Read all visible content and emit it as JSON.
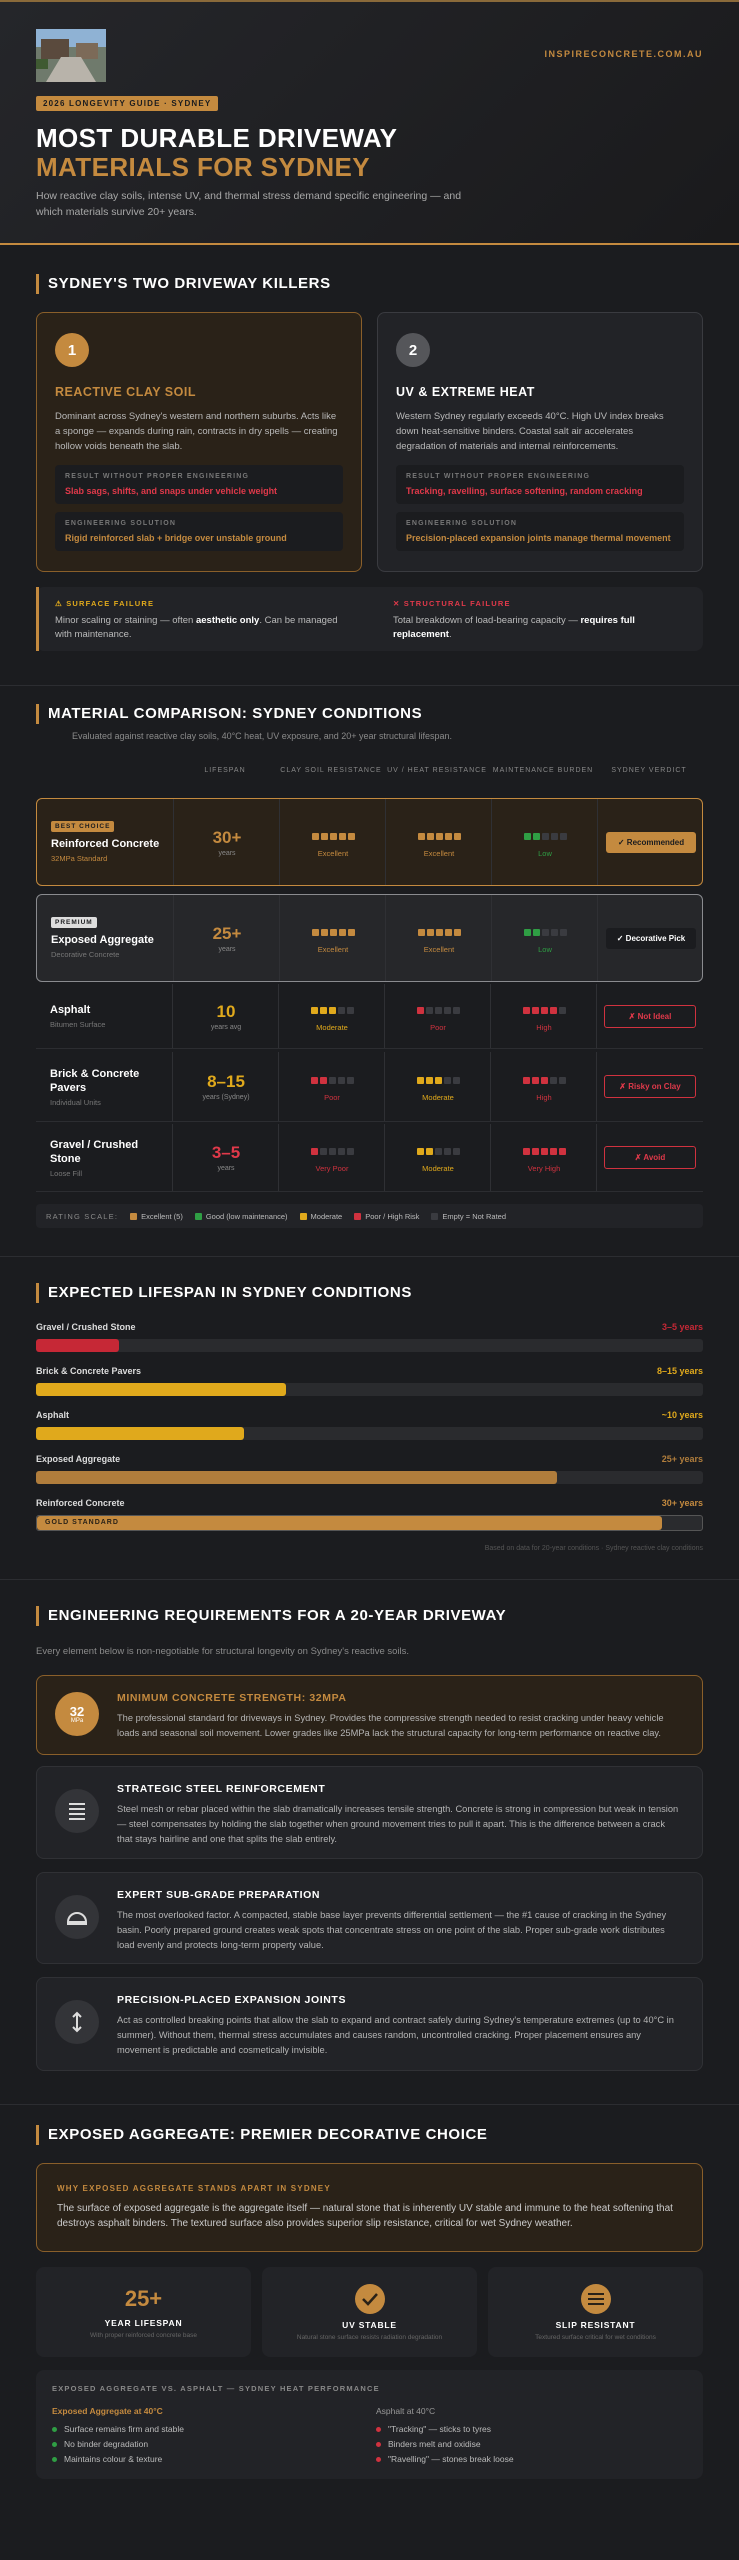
{
  "header": {
    "brand": "INSPIRECONCRETE.COM.AU",
    "tag": "2026 LONGEVITY GUIDE · SYDNEY",
    "title_line1": "MOST DURABLE DRIVEWAY",
    "title_line2": "MATERIALS FOR SYDNEY",
    "subtitle": "How reactive clay soils, intense UV, and thermal stress demand specific engineering — and which materials survive 20+ years."
  },
  "killers": {
    "title": "SYDNEY'S TWO DRIVEWAY KILLERS",
    "cards": [
      {
        "number": 1,
        "title": "REACTIVE CLAY SOIL",
        "body": "Dominant across Sydney's western and northern suburbs. Acts like a sponge — expands during rain, contracts in dry spells — creating hollow voids beneath the slab.",
        "result_label": "RESULT WITHOUT PROPER ENGINEERING",
        "result": "Slab sags, shifts, and snaps under vehicle weight",
        "solution_label": "ENGINEERING SOLUTION",
        "solution": "Rigid reinforced slab + bridge over unstable ground"
      },
      {
        "number": 2,
        "title": "UV & EXTREME HEAT",
        "body": "Western Sydney regularly exceeds 40°C. High UV index breaks down heat-sensitive binders. Coastal salt air accelerates degradation of materials and internal reinforcements.",
        "result_label": "RESULT WITHOUT PROPER ENGINEERING",
        "result": "Tracking, ravelling, surface softening, random cracking",
        "solution_label": "ENGINEERING SOLUTION",
        "solution": "Precision-placed expansion joints manage thermal movement"
      }
    ],
    "failures": [
      {
        "title": "⚠ SURFACE FAILURE",
        "text_before": "Minor scaling or staining — often ",
        "emph": "aesthetic only",
        "text_after": ". Can be managed with maintenance."
      },
      {
        "title": "✕ STRUCTURAL FAILURE",
        "text_before": "Total breakdown of load-bearing capacity — ",
        "emph": "requires full replacement",
        "text_after": "."
      }
    ]
  },
  "comparison": {
    "title": "MATERIAL COMPARISON: SYDNEY CONDITIONS",
    "subtitle": "Evaluated against reactive clay soils, 40°C heat, UV exposure, and 20+ year structural lifespan.",
    "columns": [
      "LIFESPAN",
      "CLAY SOIL RESISTANCE",
      "UV / HEAT RESISTANCE",
      "MAINTENANCE BURDEN",
      "SYDNEY VERDICT"
    ],
    "rows": [
      {
        "badge": "BEST CHOICE",
        "name": "Reinforced Concrete",
        "note": "32MPa Standard",
        "lifespan": "30+",
        "lifespan_unit": "years",
        "clay": {
          "label": "Excellent",
          "score": 5,
          "color": "#c48a3f"
        },
        "uv": {
          "label": "Excellent",
          "score": 5,
          "color": "#c48a3f"
        },
        "maintenance": {
          "label": "Low",
          "score": 2,
          "color": "#2f9e44"
        },
        "verdict": "✓ Recommended"
      },
      {
        "badge": "PREMIUM",
        "name": "Exposed Aggregate",
        "note": "Decorative Concrete",
        "lifespan": "25+",
        "lifespan_unit": "years",
        "clay": {
          "label": "Excellent",
          "score": 5,
          "color": "#c48a3f"
        },
        "uv": {
          "label": "Excellent",
          "score": 5,
          "color": "#c48a3f"
        },
        "maintenance": {
          "label": "Low",
          "score": 2,
          "color": "#2f9e44"
        },
        "verdict": "✓ Decorative Pick"
      },
      {
        "name": "Asphalt",
        "note": "Bitumen Surface",
        "lifespan": "10",
        "lifespan_unit": "years avg",
        "clay": {
          "label": "Moderate",
          "score": 3,
          "color": "#e0a91c"
        },
        "uv": {
          "label": "Poor",
          "score": 1,
          "color": "#d0323f"
        },
        "maintenance": {
          "label": "High",
          "score": 4,
          "color": "#d0323f"
        },
        "verdict": "✗ Not Ideal"
      },
      {
        "name": "Brick & Concrete Pavers",
        "note": "Individual Units",
        "lifespan": "8–15",
        "lifespan_unit": "years (Sydney)",
        "clay": {
          "label": "Poor",
          "score": 2,
          "color": "#d0323f"
        },
        "uv": {
          "label": "Moderate",
          "score": 3,
          "color": "#e0a91c"
        },
        "maintenance": {
          "label": "High",
          "score": 3,
          "color": "#d0323f"
        },
        "verdict": "✗ Risky on Clay"
      },
      {
        "name": "Gravel / Crushed Stone",
        "note": "Loose Fill",
        "lifespan": "3–5",
        "lifespan_unit": "years",
        "clay": {
          "label": "Very Poor",
          "score": 1,
          "color": "#d0323f"
        },
        "uv": {
          "label": "Moderate",
          "score": 2,
          "color": "#e0a91c"
        },
        "maintenance": {
          "label": "Very High",
          "score": 5,
          "color": "#d0323f"
        },
        "verdict": "✗ Avoid"
      }
    ],
    "scale_label": "RATING SCALE:",
    "scale": [
      {
        "label": "Excellent (5)",
        "color": "#c48a3f"
      },
      {
        "label": "Good (low maintenance)",
        "color": "#2f9e44"
      },
      {
        "label": "Moderate",
        "color": "#e0a91c"
      },
      {
        "label": "Poor / High Risk",
        "color": "#d0323f"
      },
      {
        "label": "Empty = Not Rated",
        "color": "#3a3b40"
      }
    ]
  },
  "lifespan_chart": {
    "type": "bar",
    "title": "EXPECTED LIFESPAN IN SYDNEY CONDITIONS",
    "categories": [
      "Gravel / Crushed Stone",
      "Brick & Concrete Pavers",
      "Asphalt",
      "Exposed Aggregate",
      "Reinforced Concrete"
    ],
    "values": [
      4,
      12,
      10,
      25,
      30
    ],
    "value_labels": [
      "3–5 years",
      "8–15 years",
      "~10 years",
      "25+ years",
      "30+ years"
    ],
    "colors": [
      "#c62836",
      "#e0a91c",
      "#e0a91c",
      "#b07d3c",
      "#c48a3f"
    ],
    "xlim": [
      0,
      32
    ],
    "badge": "GOLD STANDARD",
    "footnote": "Based on data for 20-year conditions · Sydney reactive clay conditions"
  },
  "engineering": {
    "title": "ENGINEERING REQUIREMENTS FOR A 20-YEAR DRIVEWAY",
    "subtitle": "Every element below is non-negotiable for structural longevity on Sydney's reactive soils.",
    "cards": [
      {
        "badge_value": "32",
        "badge_unit": "MPa",
        "title": "MINIMUM CONCRETE STRENGTH: 32MPA",
        "body": "The professional standard for driveways in Sydney. Provides the compressive strength needed to resist cracking under heavy vehicle loads and seasonal soil movement. Lower grades like 25MPa lack the structural capacity for long-term performance on reactive clay."
      },
      {
        "title": "STRATEGIC STEEL REINFORCEMENT",
        "body": "Steel mesh or rebar placed within the slab dramatically increases tensile strength. Concrete is strong in compression but weak in tension — steel compensates by holding the slab together when ground movement tries to pull it apart. This is the difference between a crack that stays hairline and one that splits the slab entirely."
      },
      {
        "title": "EXPERT SUB-GRADE PREPARATION",
        "body": "The most overlooked factor. A compacted, stable base layer prevents differential settlement — the #1 cause of cracking in the Sydney basin. Poorly prepared ground creates weak spots that concentrate stress on one point of the slab. Proper sub-grade work distributes load evenly and protects long-term property value."
      },
      {
        "title": "PRECISION-PLACED EXPANSION JOINTS",
        "body": "Act as controlled breaking points that allow the slab to expand and contract safely during Sydney's temperature extremes (up to 40°C in summer). Without them, thermal stress accumulates and causes random, uncontrolled cracking. Proper placement ensures any movement is predictable and cosmetically invisible."
      }
    ]
  },
  "aggregate": {
    "title": "EXPOSED AGGREGATE: PREMIER DECORATIVE CHOICE",
    "box_label": "WHY EXPOSED AGGREGATE STANDS APART IN SYDNEY",
    "box_text": "The surface of exposed aggregate is the aggregate itself — natural stone that is inherently UV stable and immune to the heat softening that destroys asphalt binders. The textured surface also provides superior slip resistance, critical for wet Sydney weather.",
    "stats": [
      {
        "value": "25+",
        "label": "YEAR LIFESPAN",
        "note": "With proper reinforced concrete base"
      },
      {
        "label": "UV STABLE",
        "note": "Natural stone surface resists radiation degradation"
      },
      {
        "label": "SLIP RESISTANT",
        "note": "Textured surface critical for wet conditions"
      }
    ],
    "versus_title": "EXPOSED AGGREGATE VS. ASPHALT — SYDNEY HEAT PERFORMANCE",
    "left_title": "Exposed Aggregate at 40°C",
    "left": [
      "Surface remains firm and stable",
      "No binder degradation",
      "Maintains colour & texture"
    ],
    "right_title": "Asphalt at 40°C",
    "right": [
      "\"Tracking\" — sticks to tyres",
      "Binders melt and oxidise",
      "\"Ravelling\" — stones break loose"
    ]
  }
}
